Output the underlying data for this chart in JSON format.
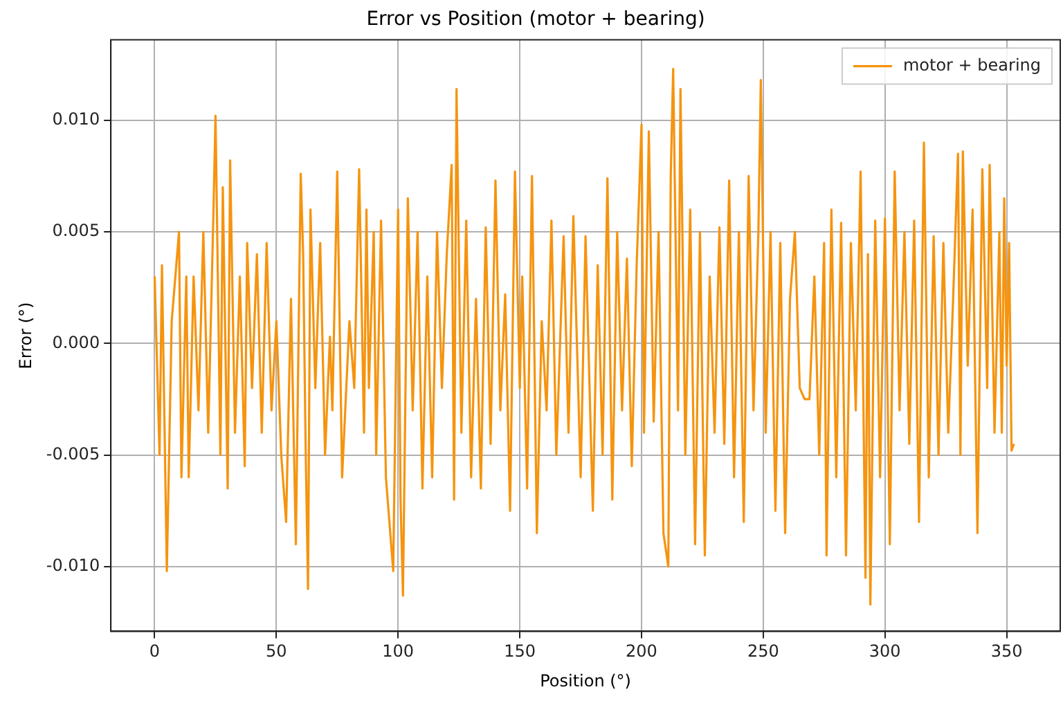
{
  "chart_data": {
    "type": "line",
    "title": "Error vs Position (motor + bearing)",
    "xlabel": "Position (°)",
    "ylabel": "Error (°)",
    "x": [
      0,
      2,
      3,
      5,
      7,
      10,
      11,
      13,
      14,
      16,
      18,
      20,
      22,
      24,
      25,
      27,
      28,
      30,
      31,
      33,
      35,
      37,
      38,
      40,
      42,
      44,
      46,
      48,
      50,
      52,
      54,
      56,
      58,
      60,
      61,
      62,
      63,
      64,
      66,
      68,
      70,
      72,
      73,
      75,
      77,
      80,
      82,
      84,
      86,
      87,
      88,
      90,
      91,
      93,
      95,
      98,
      100,
      101,
      102,
      104,
      106,
      108,
      110,
      112,
      114,
      116,
      118,
      120,
      122,
      123,
      124,
      126,
      128,
      130,
      132,
      134,
      136,
      138,
      140,
      142,
      144,
      146,
      148,
      150,
      151,
      153,
      155,
      157,
      159,
      161,
      163,
      165,
      168,
      170,
      172,
      175,
      177,
      180,
      182,
      184,
      186,
      188,
      190,
      192,
      194,
      196,
      198,
      200,
      201,
      203,
      205,
      207,
      209,
      211,
      212,
      213,
      215,
      216,
      218,
      220,
      222,
      224,
      226,
      228,
      230,
      232,
      234,
      236,
      238,
      240,
      242,
      244,
      246,
      248,
      249,
      251,
      253,
      255,
      257,
      259,
      261,
      263,
      265,
      267,
      269,
      271,
      273,
      275,
      276,
      278,
      280,
      282,
      284,
      286,
      288,
      290,
      292,
      293,
      294,
      296,
      298,
      300,
      302,
      304,
      306,
      308,
      310,
      312,
      314,
      316,
      318,
      320,
      322,
      324,
      326,
      328,
      330,
      331,
      332,
      334,
      336,
      338,
      340,
      342,
      343,
      345,
      347,
      348,
      349,
      350,
      351,
      352,
      353
    ],
    "series": [
      {
        "name": "motor + bearing",
        "color": "#f5940f",
        "values": [
          0.003,
          -0.005,
          0.0035,
          -0.0102,
          0.001,
          0.005,
          -0.006,
          0.003,
          -0.006,
          0.003,
          -0.003,
          0.005,
          -0.004,
          0.0052,
          0.0102,
          -0.005,
          0.007,
          -0.0065,
          0.0082,
          -0.004,
          0.003,
          -0.0055,
          0.0045,
          -0.002,
          0.004,
          -0.004,
          0.0045,
          -0.003,
          0.001,
          -0.005,
          -0.008,
          0.002,
          -0.009,
          0.0076,
          0.004,
          -0.0045,
          -0.011,
          0.006,
          -0.002,
          0.0045,
          -0.005,
          0.0003,
          -0.003,
          0.0077,
          -0.006,
          0.001,
          -0.002,
          0.0078,
          -0.004,
          0.006,
          -0.002,
          0.005,
          -0.005,
          0.0055,
          -0.006,
          -0.0102,
          0.006,
          -0.007,
          -0.0113,
          0.0065,
          -0.003,
          0.005,
          -0.0065,
          0.003,
          -0.006,
          0.005,
          -0.002,
          0.004,
          0.008,
          -0.007,
          0.0114,
          -0.004,
          0.0055,
          -0.006,
          0.002,
          -0.0065,
          0.0052,
          -0.0045,
          0.0073,
          -0.003,
          0.0022,
          -0.0075,
          0.0077,
          -0.002,
          0.003,
          -0.0065,
          0.0075,
          -0.0085,
          0.001,
          -0.003,
          0.0055,
          -0.005,
          0.0048,
          -0.004,
          0.0057,
          -0.006,
          0.0048,
          -0.0075,
          0.0035,
          -0.005,
          0.0074,
          -0.007,
          0.005,
          -0.003,
          0.0038,
          -0.0055,
          0.0035,
          0.0098,
          -0.004,
          0.0095,
          -0.0035,
          0.005,
          -0.0085,
          -0.01,
          0.0075,
          0.0123,
          -0.003,
          0.0114,
          -0.005,
          0.006,
          -0.009,
          0.005,
          -0.0095,
          0.003,
          -0.004,
          0.0052,
          -0.0045,
          0.0073,
          -0.006,
          0.005,
          -0.008,
          0.0075,
          -0.003,
          0.005,
          0.0118,
          -0.004,
          0.005,
          -0.0075,
          0.0045,
          -0.0085,
          0.002,
          0.005,
          -0.002,
          -0.0025,
          -0.0025,
          0.003,
          -0.005,
          0.0045,
          -0.0095,
          0.006,
          -0.006,
          0.0054,
          -0.0095,
          0.0045,
          -0.003,
          0.0077,
          -0.0105,
          0.004,
          -0.0117,
          0.0055,
          -0.006,
          0.0056,
          -0.009,
          0.0077,
          -0.003,
          0.005,
          -0.0045,
          0.0055,
          -0.008,
          0.009,
          -0.006,
          0.0048,
          -0.005,
          0.0045,
          -0.004,
          0.002,
          0.0085,
          -0.005,
          0.0086,
          -0.001,
          0.006,
          -0.0085,
          0.0078,
          -0.002,
          0.008,
          -0.004,
          0.005,
          -0.004,
          0.0065,
          -0.001,
          0.0045,
          -0.0048,
          -0.0045
        ]
      }
    ],
    "xlim": [
      -18,
      372
    ],
    "ylim": [
      -0.0129,
      0.0136
    ],
    "xticks": [
      0,
      50,
      100,
      150,
      200,
      250,
      300,
      350
    ],
    "yticks": [
      {
        "value": -0.01,
        "label": "-0.010"
      },
      {
        "value": -0.005,
        "label": "-0.005"
      },
      {
        "value": 0,
        "label": "0.000"
      },
      {
        "value": 0.005,
        "label": "0.005"
      },
      {
        "value": 0.01,
        "label": "0.010"
      }
    ],
    "grid": true,
    "legend": "top right",
    "marker": "none",
    "line_style": "solid"
  }
}
